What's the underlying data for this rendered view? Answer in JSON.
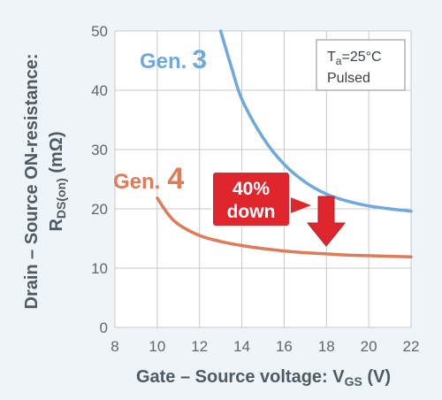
{
  "chart_data": {
    "type": "line",
    "xlabel_main": "Gate – Source voltage: V",
    "xlabel_sub": "GS",
    "xlabel_unit": " (V)",
    "ylabel_line1": "Drain – Source ON-resistance:",
    "ylabel_line2_main": "R",
    "ylabel_line2_sub": "DS(on)",
    "ylabel_line2_unit": " (mΩ)",
    "xlim": [
      8,
      22
    ],
    "ylim": [
      0,
      50
    ],
    "xticks": [
      8,
      10,
      12,
      14,
      16,
      18,
      20,
      22
    ],
    "yticks": [
      0,
      10,
      20,
      30,
      40,
      50
    ],
    "grid": true,
    "series": [
      {
        "name": "Gen. 3",
        "name_prefix": "Gen.",
        "name_number": "3",
        "color": "#6fa8dc",
        "x": [
          13.0,
          13.5,
          14,
          15,
          16,
          17,
          18,
          19,
          20,
          21,
          22
        ],
        "y": [
          50,
          44,
          38.5,
          32,
          27.5,
          24.5,
          22.5,
          21.3,
          20.5,
          20.0,
          19.6
        ]
      },
      {
        "name": "Gen. 4",
        "name_prefix": "Gen.",
        "name_number": "4",
        "color": "#e07b5a",
        "x": [
          10,
          10.5,
          11,
          12,
          13,
          14,
          15,
          16,
          17,
          18,
          19,
          20,
          21,
          22
        ],
        "y": [
          21.8,
          19.2,
          17.4,
          15.5,
          14.5,
          13.8,
          13.3,
          12.9,
          12.6,
          12.4,
          12.2,
          12.1,
          12.0,
          11.9
        ]
      }
    ],
    "annotations": {
      "conditions_line1_main": "T",
      "conditions_line1_sub": "a",
      "conditions_line1_rest": "=25°C",
      "conditions_line2": "Pulsed",
      "callout_line1": "40%",
      "callout_line2": "down"
    }
  },
  "colors": {
    "background": "#eef4f8",
    "plot_background": "#ffffff",
    "grid": "#c4c9cd",
    "axis_title": "#4f5a62",
    "callout_red": "#e0262d",
    "gen3": "#6fa8dc",
    "gen4": "#e07b5a"
  }
}
